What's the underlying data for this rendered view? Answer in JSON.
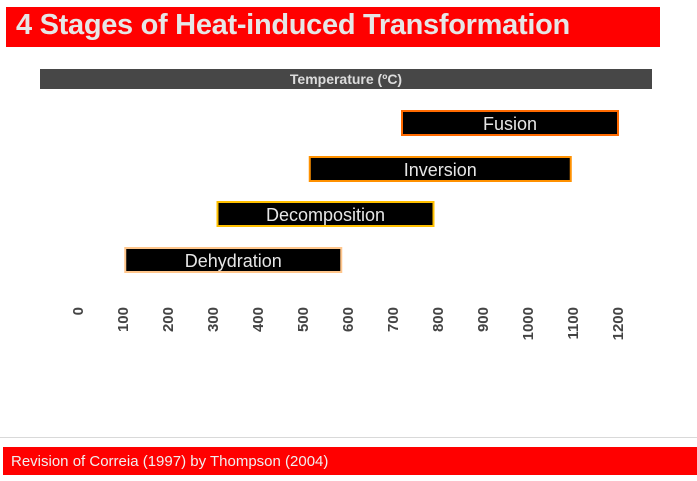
{
  "header": {
    "title": "4 Stages of Heat-induced Transformation"
  },
  "footer": {
    "citation": "Revision of Correia (1997) by Thompson (2004)"
  },
  "chart_data": {
    "type": "bar",
    "orientation": "horizontal-range",
    "title": "4 Stages of Heat-induced Transformation",
    "xlabel": "Temperature (ºC)",
    "xlim": [
      0,
      1200
    ],
    "ticks": [
      "0",
      "100",
      "200",
      "300",
      "400",
      "500",
      "600",
      "700",
      "800",
      "900",
      "1000",
      "1100",
      "1200"
    ],
    "tick_values": [
      0,
      100,
      200,
      300,
      400,
      500,
      600,
      700,
      800,
      900,
      1000,
      1100,
      1200
    ],
    "grid": false,
    "categories": [
      "Fusion",
      "Inversion",
      "Decomposition",
      "Dehydration"
    ],
    "series": [
      {
        "name": "Fusion",
        "start": 720,
        "end": 1200,
        "border_color": "#ff6a00"
      },
      {
        "name": "Inversion",
        "start": 515,
        "end": 1095,
        "border_color": "#ff9100"
      },
      {
        "name": "Decomposition",
        "start": 310,
        "end": 790,
        "border_color": "#ffc000"
      },
      {
        "name": "Dehydration",
        "start": 105,
        "end": 585,
        "border_color": "#ffc68c"
      }
    ],
    "bar_fill": "#000000"
  },
  "colors": {
    "title_bg": "#ff0000",
    "axis_bar": "#474747"
  }
}
